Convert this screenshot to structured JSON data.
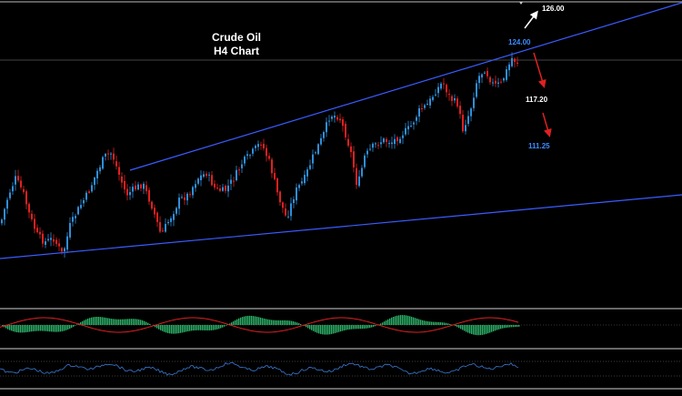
{
  "chart_data": {
    "type": "candlestick",
    "title": "Crude Oil",
    "subtitle": "H4 Chart",
    "colors": {
      "background": "#000000",
      "bull_candle": "#2f8fd8",
      "bear_candle": "#e02020",
      "trendline": "#3a5cff",
      "histogram": "#2db36a",
      "signal": "#e02020",
      "oscillator": "#3a7bd5",
      "separator": "#cfcfcf",
      "dotted": "#777777",
      "bull_label": "#ffffff",
      "bear_label": "#ffffff",
      "blue_label": "#3a8cff"
    },
    "levels": [
      {
        "label": "126.00",
        "kind": "white"
      },
      {
        "label": "124.00",
        "kind": "blue"
      },
      {
        "label": "117.20",
        "kind": "white"
      },
      {
        "label": "111.25",
        "kind": "blue"
      }
    ],
    "arrows": [
      {
        "direction": "up",
        "color": "#ffffff"
      },
      {
        "direction": "down",
        "color": "#e02020"
      },
      {
        "direction": "down",
        "color": "#e02020"
      }
    ]
  }
}
